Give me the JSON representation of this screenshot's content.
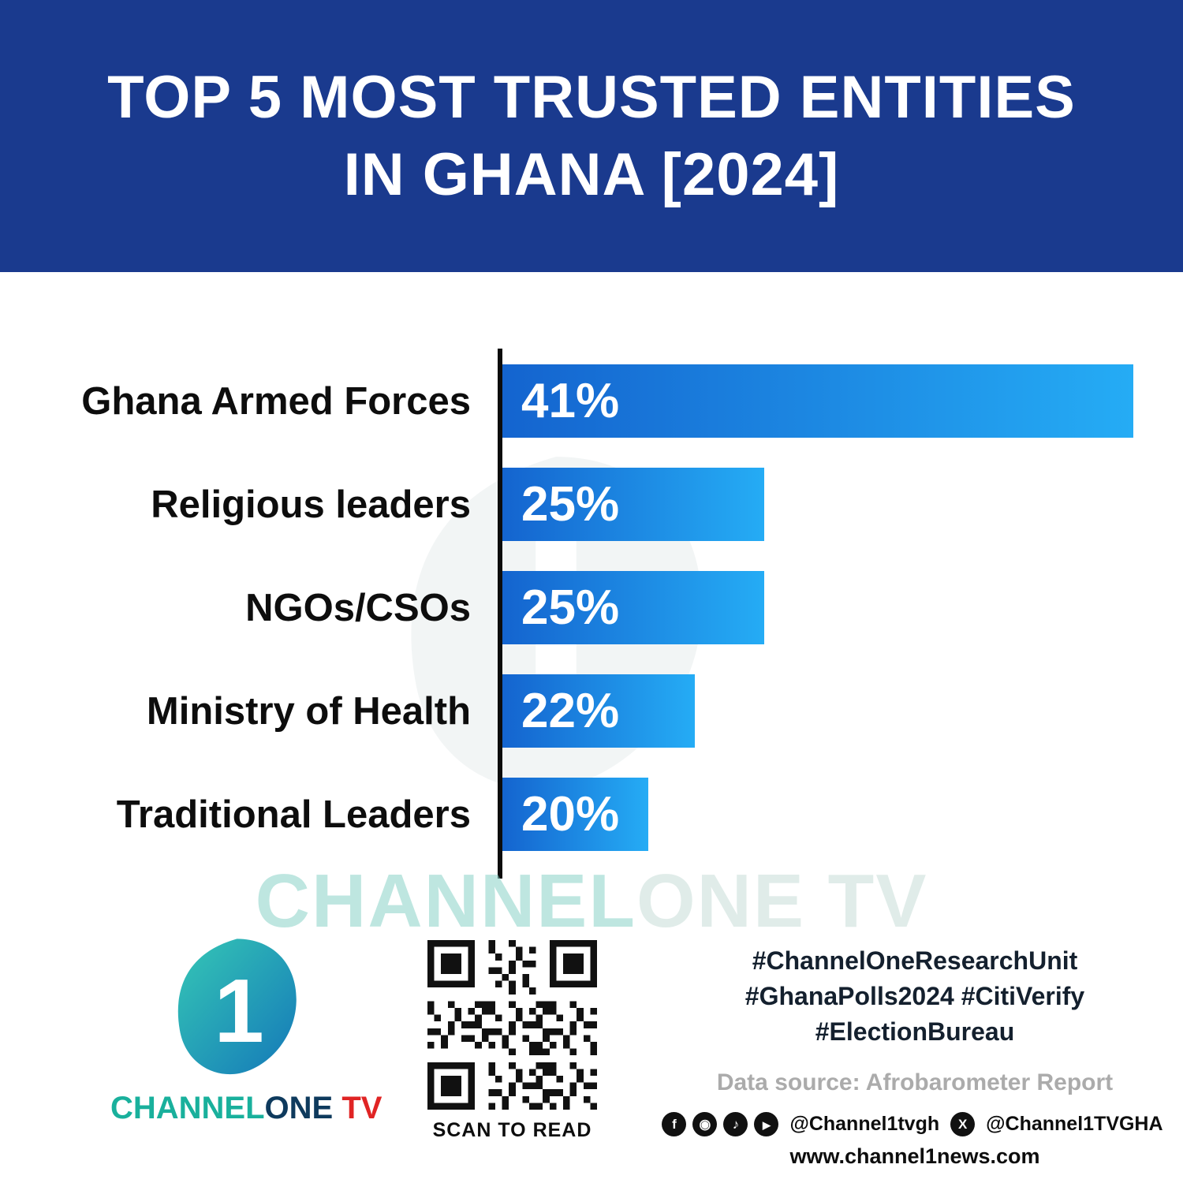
{
  "header": {
    "title_line1": "TOP 5 MOST TRUSTED ENTITIES",
    "title_line2": "IN GHANA [2024]"
  },
  "chart_data": {
    "type": "bar",
    "orientation": "horizontal",
    "title": "TOP 5 MOST TRUSTED ENTITIES IN GHANA [2024]",
    "categories": [
      "Ghana Armed Forces",
      "Religious leaders",
      "NGOs/CSOs",
      "Ministry of Health",
      "Traditional Leaders"
    ],
    "values": [
      41,
      25,
      25,
      22,
      20
    ],
    "value_labels": [
      "41%",
      "25%",
      "25%",
      "22%",
      "20%"
    ],
    "xlabel": "",
    "ylabel": "",
    "xlim": [
      0,
      41
    ],
    "grid": false,
    "legend": false,
    "bar_color_start": "#1464cf",
    "bar_color_end": "#25acf5"
  },
  "watermark": {
    "part1": "CHANNEL",
    "part2": "ONE TV"
  },
  "footer": {
    "logo": {
      "numeral": "1",
      "channel": "CHANNEL",
      "one": "ONE",
      "tv": " TV"
    },
    "qr_caption": "SCAN TO READ",
    "hashtags_line1": "#ChannelOneResearchUnit",
    "hashtags_line2": "#GhanaPolls2024 #CitiVerify",
    "hashtags_line3": "#ElectionBureau",
    "data_source": "Data source: Afrobarometer Report",
    "social_handle1": "@Channel1tvgh",
    "social_handle2": "@Channel1TVGHA",
    "website": "www.channel1news.com"
  },
  "colors": {
    "header_bg": "#1a3a8e",
    "bar_gradient_start": "#1464cf",
    "bar_gradient_end": "#25acf5",
    "accent_teal": "#19b09c",
    "accent_red": "#e02424",
    "axis": "#0c0c0c"
  }
}
